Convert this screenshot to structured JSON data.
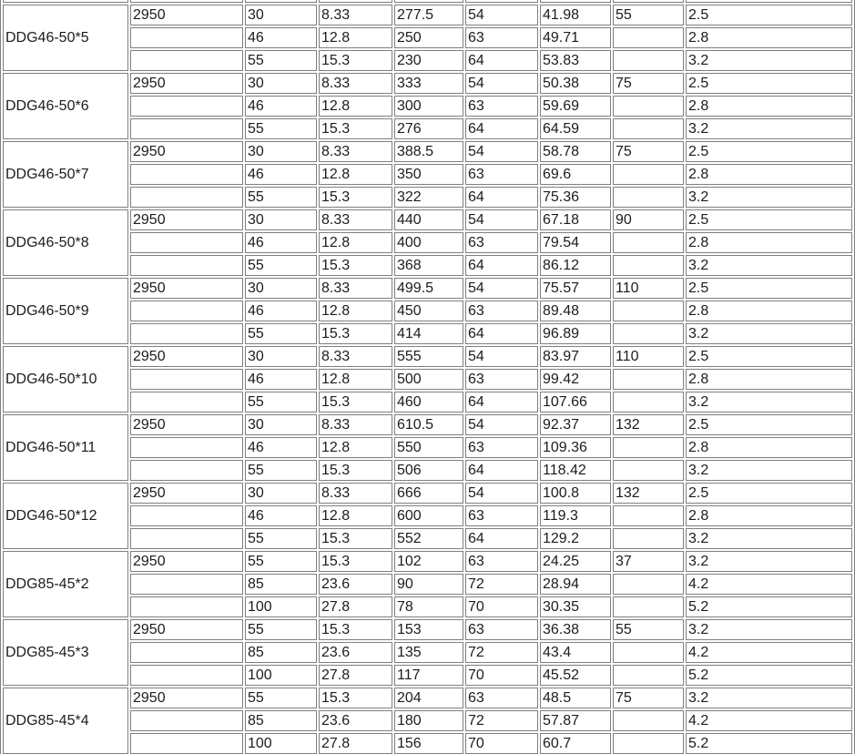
{
  "chart_data": {
    "type": "table",
    "grid_on": true,
    "header_visible": false,
    "top_partial_row": true,
    "columns_count": 9,
    "row_group_size": 3,
    "groups": [
      {
        "model": "DDG46-50*5",
        "speed": "2950",
        "rows": [
          [
            "30",
            "8.33",
            "277.5",
            "54",
            "41.98",
            "55",
            "2.5"
          ],
          [
            "46",
            "12.8",
            "250",
            "63",
            "49.71",
            "",
            "2.8"
          ],
          [
            "55",
            "15.3",
            "230",
            "64",
            "53.83",
            "",
            "3.2"
          ]
        ]
      },
      {
        "model": "DDG46-50*6",
        "speed": "2950",
        "rows": [
          [
            "30",
            "8.33",
            "333",
            "54",
            "50.38",
            "75",
            "2.5"
          ],
          [
            "46",
            "12.8",
            "300",
            "63",
            "59.69",
            "",
            "2.8"
          ],
          [
            "55",
            "15.3",
            "276",
            "64",
            "64.59",
            "",
            "3.2"
          ]
        ]
      },
      {
        "model": "DDG46-50*7",
        "speed": "2950",
        "rows": [
          [
            "30",
            "8.33",
            "388.5",
            "54",
            "58.78",
            "75",
            "2.5"
          ],
          [
            "46",
            "12.8",
            "350",
            "63",
            "69.6",
            "",
            "2.8"
          ],
          [
            "55",
            "15.3",
            "322",
            "64",
            "75.36",
            "",
            "3.2"
          ]
        ]
      },
      {
        "model": "DDG46-50*8",
        "speed": "2950",
        "rows": [
          [
            "30",
            "8.33",
            "440",
            "54",
            "67.18",
            "90",
            "2.5"
          ],
          [
            "46",
            "12.8",
            "400",
            "63",
            "79.54",
            "",
            "2.8"
          ],
          [
            "55",
            "15.3",
            "368",
            "64",
            "86.12",
            "",
            "3.2"
          ]
        ]
      },
      {
        "model": "DDG46-50*9",
        "speed": "2950",
        "rows": [
          [
            "30",
            "8.33",
            "499.5",
            "54",
            "75.57",
            "110",
            "2.5"
          ],
          [
            "46",
            "12.8",
            "450",
            "63",
            "89.48",
            "",
            "2.8"
          ],
          [
            "55",
            "15.3",
            "414",
            "64",
            "96.89",
            "",
            "3.2"
          ]
        ]
      },
      {
        "model": "DDG46-50*10",
        "speed": "2950",
        "rows": [
          [
            "30",
            "8.33",
            "555",
            "54",
            "83.97",
            "110",
            "2.5"
          ],
          [
            "46",
            "12.8",
            "500",
            "63",
            "99.42",
            "",
            "2.8"
          ],
          [
            "55",
            "15.3",
            "460",
            "64",
            "107.66",
            "",
            "3.2"
          ]
        ]
      },
      {
        "model": "DDG46-50*11",
        "speed": "2950",
        "rows": [
          [
            "30",
            "8.33",
            "610.5",
            "54",
            "92.37",
            "132",
            "2.5"
          ],
          [
            "46",
            "12.8",
            "550",
            "63",
            "109.36",
            "",
            "2.8"
          ],
          [
            "55",
            "15.3",
            "506",
            "64",
            "118.42",
            "",
            "3.2"
          ]
        ]
      },
      {
        "model": "DDG46-50*12",
        "speed": "2950",
        "rows": [
          [
            "30",
            "8.33",
            "666",
            "54",
            "100.8",
            "132",
            "2.5"
          ],
          [
            "46",
            "12.8",
            "600",
            "63",
            "119.3",
            "",
            "2.8"
          ],
          [
            "55",
            "15.3",
            "552",
            "64",
            "129.2",
            "",
            "3.2"
          ]
        ]
      },
      {
        "model": "DDG85-45*2",
        "speed": "2950",
        "rows": [
          [
            "55",
            "15.3",
            "102",
            "63",
            "24.25",
            "37",
            "3.2"
          ],
          [
            "85",
            "23.6",
            "90",
            "72",
            "28.94",
            "",
            "4.2"
          ],
          [
            "100",
            "27.8",
            "78",
            "70",
            "30.35",
            "",
            "5.2"
          ]
        ]
      },
      {
        "model": "DDG85-45*3",
        "speed": "2950",
        "rows": [
          [
            "55",
            "15.3",
            "153",
            "63",
            "36.38",
            "55",
            "3.2"
          ],
          [
            "85",
            "23.6",
            "135",
            "72",
            "43.4",
            "",
            "4.2"
          ],
          [
            "100",
            "27.8",
            "117",
            "70",
            "45.52",
            "",
            "5.2"
          ]
        ]
      },
      {
        "model": "DDG85-45*4",
        "speed": "2950",
        "rows": [
          [
            "55",
            "15.3",
            "204",
            "63",
            "48.5",
            "75",
            "3.2"
          ],
          [
            "85",
            "23.6",
            "180",
            "72",
            "57.87",
            "",
            "4.2"
          ],
          [
            "100",
            "27.8",
            "156",
            "70",
            "60.7",
            "",
            "5.2"
          ]
        ]
      }
    ]
  }
}
